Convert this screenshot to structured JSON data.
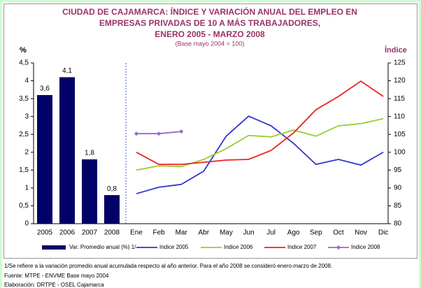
{
  "chart_data": [
    {
      "type": "bar",
      "title": [
        "CIUDAD DE CAJAMARCA: ÍNDICE Y VARIACIÓN ANUAL DEL EMPLEO EN",
        "EMPRESAS PRIVADAS DE 10 A MÁS TRABAJADORES,",
        "ENERO 2005 - MARZO 2008"
      ],
      "subtitle": "(Base mayo 2004 = 100)",
      "ylabel": "%",
      "categories": [
        "2005",
        "2006",
        "2007",
        "2008"
      ],
      "series": [
        {
          "name": "Var. Promedio anual (%) 1/",
          "color": "#000066",
          "values": [
            3.6,
            4.1,
            1.8,
            0.8
          ],
          "value_labels": [
            "3,6",
            "4,1",
            "1,8",
            "0,8"
          ]
        }
      ],
      "ylim": [
        0,
        4.5
      ],
      "yticks": [
        0,
        {
          "value": 0.5,
          "label": "0,5"
        },
        1,
        {
          "value": 1.5,
          "label": "1,5"
        },
        2,
        {
          "value": 2.5,
          "label": "2,5"
        },
        3,
        {
          "value": 3.5,
          "label": "3,5"
        },
        4,
        {
          "value": 4.5,
          "label": "4,5"
        }
      ]
    },
    {
      "type": "line",
      "ylabel": "Índice",
      "categories": [
        "Ene",
        "Feb",
        "Mar",
        "Abr",
        "May",
        "Jun",
        "Jul",
        "Ago",
        "Sep",
        "Oct",
        "Nov",
        "Dic"
      ],
      "series": [
        {
          "name": "Indice 2005",
          "color": "#3333cc",
          "axis": "y2",
          "values": [
            88.4,
            90.2,
            91,
            94.7,
            104.5,
            110.1,
            107.4,
            102.5,
            96.6,
            98,
            96.4,
            100
          ]
        },
        {
          "name": "Indice 2006",
          "color": "#99cc33",
          "axis": "y2",
          "values": [
            95,
            96.2,
            96,
            98,
            101,
            104.7,
            104.3,
            106.2,
            104.5,
            107.4,
            108,
            109.4
          ]
        },
        {
          "name": "Indice 2007",
          "color": "#ee2222",
          "axis": "y2",
          "values": [
            100,
            96.6,
            96.6,
            97.2,
            97.8,
            98,
            100.5,
            105.4,
            111.9,
            115.6,
            119.9,
            115.6
          ]
        },
        {
          "name": "Indice 2008",
          "color": "#9966cc",
          "axis": "y2",
          "markers": true,
          "values": [
            105.2,
            105.2,
            105.8,
            null,
            null,
            null,
            null,
            null,
            null,
            null,
            null,
            null
          ]
        }
      ],
      "y2lim": [
        80,
        125
      ],
      "y2ticks": [
        80,
        85,
        90,
        95,
        100,
        105,
        110,
        115,
        120,
        125
      ]
    }
  ],
  "footnotes": [
    "1/Se refiere a la variación promedio anual acumulada respecto al año anterior.  Para el año 2008  se consideró enero-marzo de 2008.",
    "Fuente: MTPE - ENVME Base mayo 2004",
    "Elaboración: DRTPE - OSEL Cajamarca"
  ]
}
